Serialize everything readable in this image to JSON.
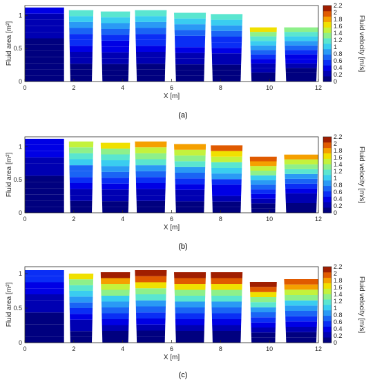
{
  "chart_data": [
    {
      "type": "area",
      "panel_label": "(a)",
      "xlabel": "X [m]",
      "ylabel": "Fluid area [m²]",
      "colorbar_label": "Fluid velocity [m/s]",
      "xlim": [
        0,
        12
      ],
      "ylim": [
        0,
        1.15
      ],
      "xticks": [
        0,
        2,
        4,
        6,
        8,
        10,
        12
      ],
      "yticks": [
        0,
        0.5,
        1
      ],
      "colorbar_ticks": [
        0,
        0.2,
        0.4,
        0.6,
        0.8,
        1,
        1.2,
        1.4,
        1.6,
        1.8,
        2,
        2.2
      ],
      "segments": [
        {
          "x_start": 0.0,
          "x_end": 1.6,
          "top": 1.12,
          "max_velocity": 0.35
        },
        {
          "x_start": 1.8,
          "x_end": 2.8,
          "top": 1.08,
          "max_velocity": 1.2
        },
        {
          "x_start": 3.1,
          "x_end": 4.3,
          "top": 1.06,
          "max_velocity": 1.1
        },
        {
          "x_start": 4.5,
          "x_end": 5.8,
          "top": 1.08,
          "max_velocity": 1.2
        },
        {
          "x_start": 6.1,
          "x_end": 7.4,
          "top": 1.04,
          "max_velocity": 1.2
        },
        {
          "x_start": 7.6,
          "x_end": 8.9,
          "top": 1.02,
          "max_velocity": 1.2
        },
        {
          "x_start": 9.2,
          "x_end": 10.3,
          "top": 0.82,
          "max_velocity": 1.6
        },
        {
          "x_start": 10.6,
          "x_end": 12.0,
          "top": 0.82,
          "max_velocity": 1.4
        }
      ]
    },
    {
      "type": "area",
      "panel_label": "(b)",
      "xlabel": "X [m]",
      "ylabel": "Fluid area [m²]",
      "colorbar_label": "Fluid velocity [m/s]",
      "xlim": [
        0,
        12
      ],
      "ylim": [
        0,
        1.15
      ],
      "xticks": [
        0,
        2,
        4,
        6,
        8,
        10,
        12
      ],
      "yticks": [
        0,
        0.5,
        1
      ],
      "colorbar_ticks": [
        0,
        0.2,
        0.4,
        0.6,
        0.8,
        1,
        1.2,
        1.4,
        1.6,
        1.8,
        2,
        2.2
      ],
      "segments": [
        {
          "x_start": 0.0,
          "x_end": 1.6,
          "top": 1.12,
          "max_velocity": 0.45
        },
        {
          "x_start": 1.8,
          "x_end": 2.8,
          "top": 1.08,
          "max_velocity": 1.5
        },
        {
          "x_start": 3.1,
          "x_end": 4.3,
          "top": 1.06,
          "max_velocity": 1.6
        },
        {
          "x_start": 4.5,
          "x_end": 5.8,
          "top": 1.08,
          "max_velocity": 1.8
        },
        {
          "x_start": 6.1,
          "x_end": 7.4,
          "top": 1.04,
          "max_velocity": 1.8
        },
        {
          "x_start": 7.6,
          "x_end": 8.9,
          "top": 1.02,
          "max_velocity": 1.9
        },
        {
          "x_start": 9.2,
          "x_end": 10.3,
          "top": 0.85,
          "max_velocity": 2.0
        },
        {
          "x_start": 10.6,
          "x_end": 12.0,
          "top": 0.88,
          "max_velocity": 1.8
        }
      ]
    },
    {
      "type": "area",
      "panel_label": "(c)",
      "xlabel": "X [m]",
      "ylabel": "Fluid area [m²]",
      "colorbar_label": "Fluid velocity [m/s]",
      "xlim": [
        0,
        12
      ],
      "ylim": [
        0,
        1.1
      ],
      "xticks": [
        0,
        2,
        4,
        6,
        8,
        10,
        12
      ],
      "yticks": [
        0,
        0.5,
        1
      ],
      "colorbar_ticks": [
        0,
        0.2,
        0.4,
        0.6,
        0.8,
        1,
        1.2,
        1.4,
        1.6,
        1.8,
        2,
        2.2
      ],
      "segments": [
        {
          "x_start": 0.0,
          "x_end": 1.6,
          "top": 1.05,
          "max_velocity": 0.6
        },
        {
          "x_start": 1.8,
          "x_end": 2.8,
          "top": 1.0,
          "max_velocity": 1.6
        },
        {
          "x_start": 3.1,
          "x_end": 4.3,
          "top": 1.02,
          "max_velocity": 2.1
        },
        {
          "x_start": 4.5,
          "x_end": 5.8,
          "top": 1.05,
          "max_velocity": 2.2
        },
        {
          "x_start": 6.1,
          "x_end": 7.4,
          "top": 1.02,
          "max_velocity": 2.2
        },
        {
          "x_start": 7.6,
          "x_end": 8.9,
          "top": 1.02,
          "max_velocity": 2.2
        },
        {
          "x_start": 9.2,
          "x_end": 10.3,
          "top": 0.88,
          "max_velocity": 2.2
        },
        {
          "x_start": 10.6,
          "x_end": 12.0,
          "top": 0.92,
          "max_velocity": 2.0
        }
      ]
    }
  ],
  "colormap": [
    "#00007f",
    "#0000b2",
    "#0000e5",
    "#0a2ef5",
    "#1a64f5",
    "#2a9af5",
    "#3acdf0",
    "#5ae6d0",
    "#8ef08a",
    "#c4f23c",
    "#f0e000",
    "#f5a000",
    "#e05a00",
    "#a01e00"
  ],
  "background_color": "#ffffff"
}
